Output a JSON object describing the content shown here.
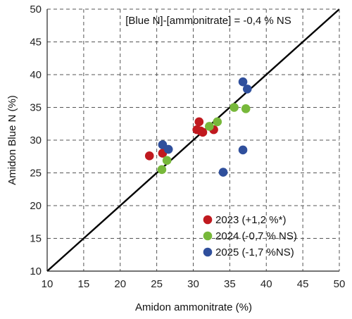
{
  "chart_data": {
    "type": "scatter",
    "title": "",
    "xlabel": "Amidon ammonitrate (%)",
    "ylabel": "Amidon Blue N (%)",
    "xlim": [
      10,
      50
    ],
    "ylim": [
      10,
      50
    ],
    "xticks": [
      10,
      15,
      20,
      25,
      30,
      35,
      40,
      45,
      50
    ],
    "yticks": [
      10,
      15,
      20,
      25,
      30,
      35,
      40,
      45,
      50
    ],
    "xtick_labels": [
      "10",
      "15",
      "20",
      "25",
      "30",
      "35",
      "40",
      "45",
      "50"
    ],
    "ytick_labels": [
      "10",
      "15",
      "20",
      "25",
      "30",
      "35",
      "40",
      "45",
      "50"
    ],
    "grid": true,
    "grid_style": "dashed",
    "reference_line": {
      "type": "identity",
      "from": [
        10,
        10
      ],
      "to": [
        50,
        50
      ],
      "color": "#000000"
    },
    "annotation": "[Blue N]-[ammonitrate] = -0,4 % NS",
    "legend_position": "bottom-right",
    "series": [
      {
        "name": "2023 (+1,2 %*)",
        "color": "#c0191f",
        "points": [
          {
            "x": 24.0,
            "y": 27.6
          },
          {
            "x": 25.8,
            "y": 28.0
          },
          {
            "x": 30.5,
            "y": 31.6
          },
          {
            "x": 30.8,
            "y": 32.8
          },
          {
            "x": 31.0,
            "y": 31.4
          },
          {
            "x": 31.3,
            "y": 31.2
          },
          {
            "x": 32.8,
            "y": 31.6
          }
        ]
      },
      {
        "name": "2024 (-0,7 % NS)",
        "color": "#77b83a",
        "points": [
          {
            "x": 25.7,
            "y": 25.5
          },
          {
            "x": 26.4,
            "y": 26.9
          },
          {
            "x": 32.2,
            "y": 32.1
          },
          {
            "x": 33.3,
            "y": 32.8
          },
          {
            "x": 35.6,
            "y": 35.0
          },
          {
            "x": 37.2,
            "y": 34.8
          }
        ]
      },
      {
        "name": "2025 (-1,7 %NS)",
        "color": "#2f4f9c",
        "points": [
          {
            "x": 25.8,
            "y": 29.3
          },
          {
            "x": 26.6,
            "y": 28.6
          },
          {
            "x": 34.1,
            "y": 25.1
          },
          {
            "x": 36.8,
            "y": 28.5
          },
          {
            "x": 36.8,
            "y": 38.9
          },
          {
            "x": 37.4,
            "y": 37.8
          }
        ]
      }
    ]
  }
}
